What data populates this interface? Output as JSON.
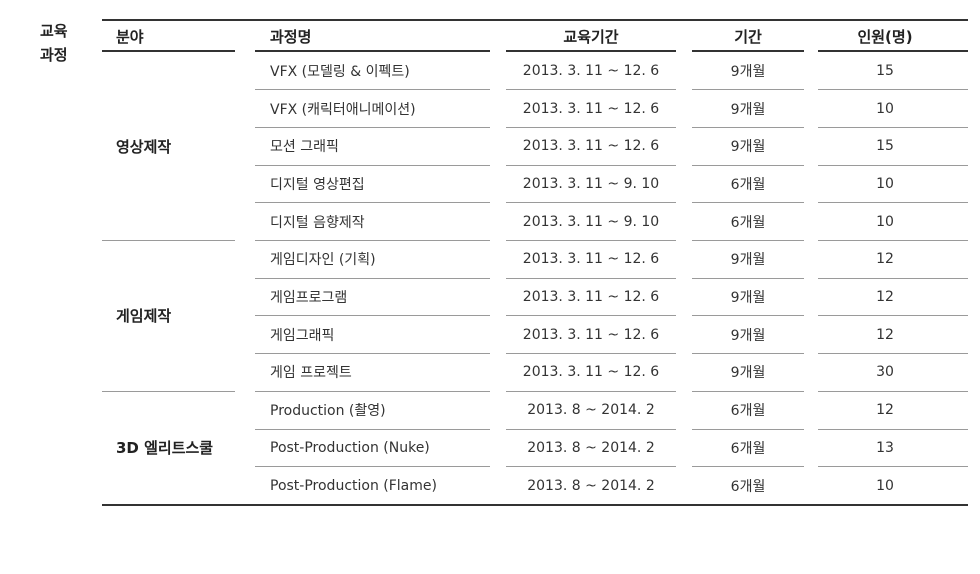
{
  "section_title": [
    "교육",
    "과정"
  ],
  "headers": {
    "field": "분야",
    "course": "과정명",
    "period": "교육기간",
    "duration": "기간",
    "count": "인원(명)"
  },
  "groups": [
    {
      "name": "영상제작",
      "rows": 5
    },
    {
      "name": "게임제작",
      "rows": 4
    },
    {
      "name": "3D 엘리트스쿨",
      "rows": 3
    }
  ],
  "rows": [
    {
      "course": "VFX (모델링 & 이펙트)",
      "period": "2013. 3. 11 ~ 12. 6",
      "duration": "9개월",
      "count": "15"
    },
    {
      "course": "VFX (캐릭터애니메이션)",
      "period": "2013. 3. 11 ~ 12. 6",
      "duration": "9개월",
      "count": "10"
    },
    {
      "course": "모션 그래픽",
      "period": "2013. 3. 11 ~ 12. 6",
      "duration": "9개월",
      "count": "15"
    },
    {
      "course": "디지털 영상편집",
      "period": "2013. 3. 11 ~  9. 10",
      "duration": "6개월",
      "count": "10"
    },
    {
      "course": "디지털 음향제작",
      "period": "2013. 3. 11 ~  9. 10",
      "duration": "6개월",
      "count": "10"
    },
    {
      "course": "게임디자인 (기획)",
      "period": "2013. 3. 11 ~ 12. 6",
      "duration": "9개월",
      "count": "12"
    },
    {
      "course": "게임프로그램",
      "period": "2013. 3. 11 ~ 12. 6",
      "duration": "9개월",
      "count": "12"
    },
    {
      "course": "게임그래픽",
      "period": "2013. 3. 11 ~ 12. 6",
      "duration": "9개월",
      "count": "12"
    },
    {
      "course": "게임 프로젝트",
      "period": "2013. 3. 11 ~ 12. 6",
      "duration": "9개월",
      "count": "30"
    },
    {
      "course": "Production (촬영)",
      "period": "2013. 8 ~ 2014. 2",
      "duration": "6개월",
      "count": "12"
    },
    {
      "course": "Post-Production (Nuke)",
      "period": "2013. 8 ~ 2014. 2",
      "duration": "6개월",
      "count": "13"
    },
    {
      "course": "Post-Production (Flame)",
      "period": "2013. 8 ~ 2014. 2",
      "duration": "6개월",
      "count": "10"
    }
  ]
}
